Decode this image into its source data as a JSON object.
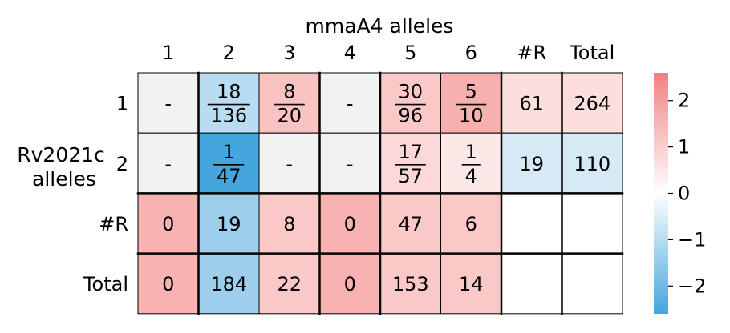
{
  "chart_data": {
    "type": "heatmap",
    "title": "mmaA4 alleles",
    "ylabel": "Rv2021c\nalleles",
    "columns": [
      "1",
      "2",
      "3",
      "4",
      "5",
      "6",
      "#R",
      "Total"
    ],
    "rows": [
      "1",
      "2",
      "#R",
      "Total"
    ],
    "cells": [
      [
        {
          "text": "-",
          "color": "#f2f2f2"
        },
        {
          "num": "18",
          "den": "136",
          "color": "#b8dcf1"
        },
        {
          "num": "8",
          "den": "20",
          "color": "#fac3c2"
        },
        {
          "text": "-",
          "color": "#f2f2f2"
        },
        {
          "num": "30",
          "den": "96",
          "color": "#fac8c7"
        },
        {
          "num": "5",
          "den": "10",
          "color": "#f8b0af"
        },
        {
          "text": "61",
          "color": "#fcdedd"
        },
        {
          "text": "264",
          "color": "#fcdedd"
        }
      ],
      [
        {
          "text": "-",
          "color": "#f2f2f2"
        },
        {
          "num": "1",
          "den": "47",
          "color": "#44a6dd"
        },
        {
          "text": "-",
          "color": "#f2f2f2"
        },
        {
          "text": "-",
          "color": "#f2f2f2"
        },
        {
          "num": "17",
          "den": "57",
          "color": "#fcd9d8"
        },
        {
          "num": "1",
          "den": "4",
          "color": "#fde8e8"
        },
        {
          "text": "19",
          "color": "#d6eaf6"
        },
        {
          "text": "110",
          "color": "#d6eaf6"
        }
      ],
      [
        {
          "text": "0",
          "color": "#f8b2b1"
        },
        {
          "text": "19",
          "color": "#9dcfec"
        },
        {
          "text": "8",
          "color": "#fac8c7"
        },
        {
          "text": "0",
          "color": "#f8b2b1"
        },
        {
          "text": "47",
          "color": "#fac8c7"
        },
        {
          "text": "6",
          "color": "#fac8c7"
        },
        {
          "text": "",
          "color": "#ffffff"
        },
        {
          "text": "",
          "color": "#ffffff"
        }
      ],
      [
        {
          "text": "0",
          "color": "#f8b2b1"
        },
        {
          "text": "184",
          "color": "#9dcfec"
        },
        {
          "text": "22",
          "color": "#fac8c7"
        },
        {
          "text": "0",
          "color": "#f8b2b1"
        },
        {
          "text": "153",
          "color": "#fac8c7"
        },
        {
          "text": "14",
          "color": "#fac8c7"
        },
        {
          "text": "",
          "color": "#ffffff"
        },
        {
          "text": "",
          "color": "#ffffff"
        }
      ]
    ],
    "colorbar": {
      "ticks": [
        "2",
        "1",
        "0",
        "−1",
        "−2"
      ],
      "tick_values": [
        2,
        1,
        0,
        -1,
        -2
      ],
      "range": [
        -2.6,
        2.6
      ],
      "colors": {
        "low": "#44a6dd",
        "mid": "#ffffff",
        "high": "#f28080"
      }
    }
  }
}
